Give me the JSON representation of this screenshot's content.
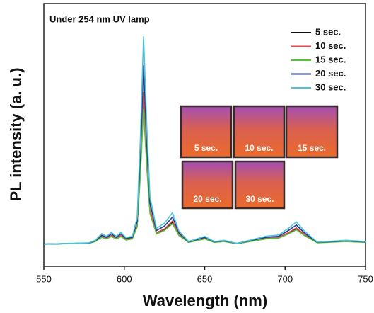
{
  "chart_data": {
    "type": "line",
    "title": "Under 254 nm UV lamp",
    "x_label": "Wavelength (nm)",
    "y_label": "PL intensity (a. u.)",
    "x": [
      550,
      578,
      582,
      586,
      589,
      592,
      595,
      598,
      601,
      605,
      608,
      610,
      612,
      614,
      616,
      620,
      625,
      630,
      634,
      640,
      650,
      656,
      662,
      670,
      688,
      696,
      702,
      707,
      712,
      720,
      738,
      750
    ],
    "series": [
      {
        "name": "5 sec.",
        "color": "#111111",
        "values": [
          8.4,
          8.8,
          9.5,
          11.2,
          10.5,
          11.6,
          10.5,
          11.6,
          10.2,
          10.5,
          15.4,
          36.4,
          63.7,
          39.9,
          21.0,
          12.6,
          14.0,
          16.8,
          11.9,
          9.1,
          10.5,
          9.1,
          9.5,
          8.6,
          10.5,
          10.9,
          12.6,
          14.4,
          11.9,
          9.0,
          9.5,
          9.1
        ]
      },
      {
        "name": "10 sec.",
        "color": "#e0484f",
        "values": [
          8.4,
          8.8,
          9.5,
          11.3,
          10.6,
          11.7,
          10.6,
          11.7,
          10.2,
          10.6,
          15.7,
          37.6,
          66.1,
          41.3,
          21.5,
          12.8,
          14.2,
          17.2,
          12.1,
          9.1,
          10.6,
          9.1,
          9.5,
          8.6,
          10.6,
          11.0,
          12.8,
          14.6,
          12.1,
          9.0,
          9.5,
          9.1
        ]
      },
      {
        "name": "15 sec.",
        "color": "#5cbf3a",
        "values": [
          8.4,
          8.7,
          9.4,
          11.0,
          10.4,
          11.3,
          10.4,
          11.3,
          10.0,
          10.4,
          14.9,
          34.4,
          59.8,
          37.7,
          20.1,
          12.3,
          13.6,
          16.2,
          11.7,
          9.1,
          10.4,
          9.1,
          9.4,
          8.6,
          10.4,
          10.7,
          12.3,
          13.9,
          11.7,
          8.9,
          9.4,
          9.1
        ]
      },
      {
        "name": "20 sec.",
        "color": "#26398f",
        "values": [
          8.4,
          8.8,
          9.7,
          11.8,
          11.0,
          12.3,
          11.0,
          12.3,
          10.6,
          11.0,
          17.0,
          42.8,
          76.3,
          47.1,
          23.9,
          13.6,
          15.3,
          18.7,
          12.7,
          9.3,
          11.0,
          9.3,
          9.7,
          8.7,
          11.0,
          11.4,
          13.6,
          15.7,
          12.7,
          9.1,
          9.7,
          9.3
        ]
      },
      {
        "name": "30 sec.",
        "color": "#4cc6d6",
        "values": [
          8.4,
          8.9,
          9.9,
          12.4,
          11.4,
          12.9,
          11.4,
          12.9,
          10.9,
          11.4,
          18.4,
          48.4,
          87.4,
          53.4,
          26.4,
          14.4,
          16.4,
          20.4,
          13.4,
          9.4,
          11.4,
          9.4,
          9.9,
          8.7,
          11.4,
          11.9,
          14.4,
          16.9,
          13.4,
          9.2,
          9.9,
          9.4
        ]
      }
    ],
    "xlim": [
      550,
      750
    ],
    "xticks": [
      550,
      600,
      650,
      700,
      750
    ],
    "ylim": [
      0,
      100
    ],
    "inset_labels": [
      "5 sec.",
      "10 sec.",
      "15 sec.",
      "20 sec.",
      "30 sec."
    ]
  }
}
